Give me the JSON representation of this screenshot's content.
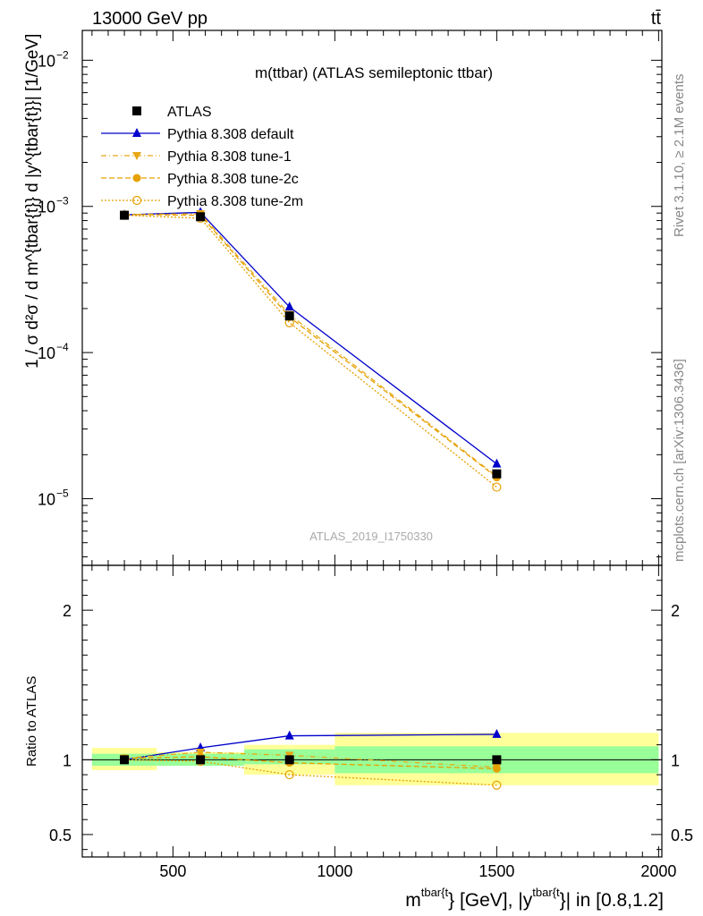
{
  "header": {
    "left": "13000 GeV pp",
    "right": "tt̄"
  },
  "side_text": {
    "rivet": "Rivet 3.1.10, ≥ 2.1M events",
    "mcplots": "mcplots.cern.ch [arXiv:1306.3436]"
  },
  "chart_data": {
    "type": "line",
    "title": "m(ttbar) (ATLAS semileptonic ttbar)",
    "watermark": "ATLAS_2019_I1750330",
    "x": [
      350,
      585,
      860,
      1500
    ],
    "bin_edges": [
      250,
      450,
      720,
      1000,
      2000
    ],
    "xlim": [
      220,
      2010
    ],
    "x_ticks": [
      "500",
      "1000",
      "1500",
      "2000"
    ],
    "x_tick_values": [
      500,
      1000,
      1500,
      2000
    ],
    "xlabel": {
      "base": "m",
      "sup1": "tbar{t",
      "mid": "} [GeV], |y",
      "sup2": "tbar{t",
      "tail": "}| in [0.8,1.2]"
    },
    "main": {
      "yscale": "log",
      "ylim": [
        3.5e-06,
        0.016
      ],
      "y_ticks": [
        {
          "value": 1e-05,
          "base": "10",
          "exp": "−5"
        },
        {
          "value": 0.0001,
          "base": "10",
          "exp": "−4"
        },
        {
          "value": 0.001,
          "base": "10",
          "exp": "−3"
        },
        {
          "value": 0.01,
          "base": "10",
          "exp": "−2"
        }
      ],
      "ylabel": "1 / σ d²σ / d m^{tbar{t}} d |y^{tbar{t}}| [1/GeV]"
    },
    "ratio": {
      "ylabel": "Ratio to ATLAS",
      "ylim": [
        0.35,
        2.3
      ],
      "y_ticks": [
        0.5,
        1,
        2
      ],
      "y_tick_labels": [
        "0.5",
        "1",
        "2"
      ],
      "band_inner": [
        [
          0.96,
          1.04
        ],
        [
          0.96,
          1.04
        ],
        [
          0.97,
          1.07
        ],
        [
          0.91,
          1.09
        ]
      ],
      "band_outer": [
        [
          0.93,
          1.08
        ],
        [
          0.96,
          1.05
        ],
        [
          0.9,
          1.1
        ],
        [
          0.83,
          1.18
        ]
      ]
    },
    "legend": [
      "ATLAS",
      "Pythia 8.308 default",
      "Pythia 8.308 tune-1",
      "Pythia 8.308 tune-2c",
      "Pythia 8.308 tune-2m"
    ],
    "series": [
      {
        "name": "ATLAS",
        "color": "#000000",
        "marker": "square",
        "line": "none",
        "values": [
          0.00087,
          0.00085,
          0.000178,
          1.48e-05
        ],
        "ratio": [
          1.0,
          1.0,
          1.0,
          1.0
        ]
      },
      {
        "name": "Pythia 8.308 default",
        "color": "#0000cc",
        "marker": "triangle-up",
        "line": "solid",
        "values": [
          0.000875,
          0.00091,
          0.000205,
          1.73e-05
        ],
        "ratio": [
          1.0,
          1.08,
          1.16,
          1.17
        ]
      },
      {
        "name": "Pythia 8.308 tune-1",
        "color": "#e6a817",
        "marker": "triangle-down",
        "line": "dashdot",
        "values": [
          0.00088,
          0.00089,
          0.000182,
          1.42e-05
        ],
        "ratio": [
          1.01,
          1.05,
          1.03,
          0.95
        ]
      },
      {
        "name": "Pythia 8.308 tune-2c",
        "color": "#e6a000",
        "marker": "circle",
        "line": "dashed",
        "values": [
          0.00088,
          0.00087,
          0.000175,
          1.4e-05
        ],
        "ratio": [
          1.01,
          1.02,
          0.98,
          0.94
        ]
      },
      {
        "name": "Pythia 8.308 tune-2m",
        "color": "#e6a000",
        "marker": "circle-open",
        "line": "dotted",
        "values": [
          0.00087,
          0.00083,
          0.00016,
          1.2e-05
        ],
        "ratio": [
          1.0,
          0.99,
          0.9,
          0.83
        ]
      }
    ]
  }
}
